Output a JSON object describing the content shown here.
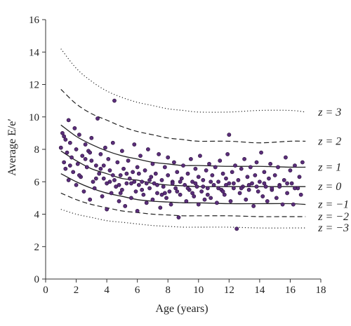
{
  "chart_data": {
    "type": "scatter",
    "title": "",
    "xlabel": "Age (years)",
    "ylabel": "Average E/e′",
    "xlim": [
      0,
      18
    ],
    "ylim": [
      0,
      16
    ],
    "x_ticks": [
      "0",
      "2",
      "4",
      "6",
      "8",
      "10",
      "12",
      "14",
      "16",
      "18"
    ],
    "y_ticks": [
      "0",
      "2",
      "4",
      "6",
      "8",
      "10",
      "12",
      "14",
      "16"
    ],
    "grid": false,
    "point_color": "#5a2e7a",
    "point_edge": "#2a0f3a",
    "centile_curves": [
      {
        "label": "z = 3",
        "style": "dotted",
        "points": [
          [
            1,
            14.2
          ],
          [
            2,
            13.0
          ],
          [
            3,
            12.2
          ],
          [
            4,
            11.6
          ],
          [
            5,
            11.2
          ],
          [
            6,
            10.9
          ],
          [
            7,
            10.7
          ],
          [
            8,
            10.5
          ],
          [
            9,
            10.4
          ],
          [
            10,
            10.3
          ],
          [
            12,
            10.3
          ],
          [
            14,
            10.4
          ],
          [
            16,
            10.4
          ],
          [
            17,
            10.3
          ]
        ]
      },
      {
        "label": "z = 2",
        "style": "dashed",
        "points": [
          [
            1,
            11.7
          ],
          [
            2,
            10.8
          ],
          [
            3,
            10.2
          ],
          [
            4,
            9.8
          ],
          [
            5,
            9.4
          ],
          [
            6,
            9.1
          ],
          [
            7,
            8.9
          ],
          [
            8,
            8.7
          ],
          [
            9,
            8.6
          ],
          [
            10,
            8.5
          ],
          [
            12,
            8.5
          ],
          [
            14,
            8.4
          ],
          [
            16,
            8.5
          ],
          [
            17,
            8.5
          ]
        ]
      },
      {
        "label": "z = 1",
        "style": "solid",
        "points": [
          [
            1,
            9.5
          ],
          [
            2,
            8.8
          ],
          [
            3,
            8.3
          ],
          [
            4,
            7.9
          ],
          [
            5,
            7.6
          ],
          [
            6,
            7.4
          ],
          [
            7,
            7.2
          ],
          [
            8,
            7.1
          ],
          [
            9,
            7.0
          ],
          [
            10,
            7.0
          ],
          [
            12,
            6.95
          ],
          [
            14,
            6.95
          ],
          [
            16,
            6.9
          ],
          [
            17,
            6.9
          ]
        ]
      },
      {
        "label": "z = 0",
        "style": "solid",
        "points": [
          [
            1,
            7.9
          ],
          [
            2,
            7.3
          ],
          [
            3,
            6.8
          ],
          [
            4,
            6.5
          ],
          [
            5,
            6.2
          ],
          [
            6,
            6.1
          ],
          [
            7,
            5.9
          ],
          [
            8,
            5.8
          ],
          [
            9,
            5.75
          ],
          [
            10,
            5.7
          ],
          [
            12,
            5.7
          ],
          [
            14,
            5.7
          ],
          [
            16,
            5.7
          ],
          [
            17,
            5.7
          ]
        ]
      },
      {
        "label": "z = −1",
        "style": "solid",
        "points": [
          [
            1,
            6.5
          ],
          [
            2,
            6.0
          ],
          [
            3,
            5.6
          ],
          [
            4,
            5.3
          ],
          [
            5,
            5.1
          ],
          [
            6,
            4.9
          ],
          [
            7,
            4.8
          ],
          [
            8,
            4.75
          ],
          [
            9,
            4.7
          ],
          [
            10,
            4.7
          ],
          [
            12,
            4.65
          ],
          [
            14,
            4.65
          ],
          [
            16,
            4.65
          ],
          [
            17,
            4.6
          ]
        ]
      },
      {
        "label": "z = −2",
        "style": "dashed",
        "points": [
          [
            1,
            5.3
          ],
          [
            2,
            4.9
          ],
          [
            3,
            4.6
          ],
          [
            4,
            4.4
          ],
          [
            5,
            4.2
          ],
          [
            6,
            4.1
          ],
          [
            7,
            4.0
          ],
          [
            8,
            3.95
          ],
          [
            9,
            3.9
          ],
          [
            10,
            3.9
          ],
          [
            12,
            3.9
          ],
          [
            14,
            3.85
          ],
          [
            16,
            3.85
          ],
          [
            17,
            3.85
          ]
        ]
      },
      {
        "label": "z = −3",
        "style": "dotted",
        "points": [
          [
            1,
            4.3
          ],
          [
            2,
            4.0
          ],
          [
            3,
            3.8
          ],
          [
            4,
            3.6
          ],
          [
            5,
            3.5
          ],
          [
            6,
            3.4
          ],
          [
            7,
            3.3
          ],
          [
            8,
            3.25
          ],
          [
            9,
            3.2
          ],
          [
            10,
            3.2
          ],
          [
            12,
            3.2
          ],
          [
            14,
            3.15
          ],
          [
            16,
            3.15
          ],
          [
            17,
            3.15
          ]
        ]
      }
    ],
    "points": [
      [
        1.0,
        8.1
      ],
      [
        1.1,
        9.0
      ],
      [
        1.2,
        7.2
      ],
      [
        1.3,
        8.6
      ],
      [
        1.3,
        6.8
      ],
      [
        1.4,
        7.8
      ],
      [
        1.5,
        9.8
      ],
      [
        1.5,
        6.1
      ],
      [
        1.6,
        8.4
      ],
      [
        1.7,
        7.5
      ],
      [
        1.8,
        6.6
      ],
      [
        1.9,
        9.3
      ],
      [
        2.0,
        8.0
      ],
      [
        2.0,
        5.8
      ],
      [
        2.1,
        7.1
      ],
      [
        2.2,
        8.9
      ],
      [
        2.3,
        6.3
      ],
      [
        2.4,
        7.6
      ],
      [
        2.5,
        5.4
      ],
      [
        2.6,
        8.3
      ],
      [
        2.7,
        6.9
      ],
      [
        2.8,
        7.9
      ],
      [
        2.9,
        4.9
      ],
      [
        3.0,
        7.3
      ],
      [
        3.0,
        8.7
      ],
      [
        3.1,
        6.0
      ],
      [
        3.2,
        5.6
      ],
      [
        3.3,
        7.0
      ],
      [
        3.4,
        9.9
      ],
      [
        3.5,
        6.5
      ],
      [
        3.6,
        7.7
      ],
      [
        3.7,
        5.1
      ],
      [
        3.8,
        6.2
      ],
      [
        3.9,
        8.1
      ],
      [
        4.0,
        5.9
      ],
      [
        4.0,
        4.3
      ],
      [
        4.1,
        7.4
      ],
      [
        4.2,
        6.7
      ],
      [
        4.3,
        5.3
      ],
      [
        4.4,
        8.4
      ],
      [
        4.5,
        6.1
      ],
      [
        4.5,
        11.0
      ],
      [
        4.6,
        5.7
      ],
      [
        4.7,
        7.2
      ],
      [
        4.8,
        4.8
      ],
      [
        4.9,
        6.4
      ],
      [
        5.0,
        7.9
      ],
      [
        5.0,
        5.5
      ],
      [
        5.1,
        6.8
      ],
      [
        5.2,
        4.5
      ],
      [
        5.3,
        5.9
      ],
      [
        5.4,
        7.3
      ],
      [
        5.5,
        6.2
      ],
      [
        5.6,
        5.0
      ],
      [
        5.7,
        6.6
      ],
      [
        5.8,
        8.3
      ],
      [
        5.9,
        5.4
      ],
      [
        6.0,
        6.9
      ],
      [
        6.0,
        4.2
      ],
      [
        6.1,
        5.8
      ],
      [
        6.2,
        7.6
      ],
      [
        6.3,
        6.0
      ],
      [
        6.4,
        5.2
      ],
      [
        6.5,
        6.7
      ],
      [
        6.6,
        4.7
      ],
      [
        6.7,
        8.0
      ],
      [
        6.8,
        5.6
      ],
      [
        6.9,
        6.3
      ],
      [
        7.0,
        7.1
      ],
      [
        7.0,
        4.9
      ],
      [
        7.1,
        5.9
      ],
      [
        7.2,
        6.5
      ],
      [
        7.3,
        5.3
      ],
      [
        7.4,
        7.7
      ],
      [
        7.5,
        4.4
      ],
      [
        7.6,
        6.1
      ],
      [
        7.7,
        5.7
      ],
      [
        7.8,
        6.9
      ],
      [
        7.9,
        5.0
      ],
      [
        8.0,
        6.4
      ],
      [
        8.0,
        7.5
      ],
      [
        8.1,
        5.4
      ],
      [
        8.2,
        4.6
      ],
      [
        8.3,
        6.0
      ],
      [
        8.4,
        7.2
      ],
      [
        8.5,
        5.6
      ],
      [
        8.6,
        6.6
      ],
      [
        8.7,
        3.8
      ],
      [
        8.8,
        5.2
      ],
      [
        8.9,
        6.2
      ],
      [
        9.0,
        7.0
      ],
      [
        9.1,
        5.8
      ],
      [
        9.2,
        4.8
      ],
      [
        9.3,
        6.5
      ],
      [
        9.4,
        5.5
      ],
      [
        9.5,
        7.4
      ],
      [
        9.6,
        6.0
      ],
      [
        9.7,
        5.1
      ],
      [
        9.8,
        6.8
      ],
      [
        9.9,
        5.7
      ],
      [
        10.0,
        4.6
      ],
      [
        10.0,
        6.3
      ],
      [
        10.1,
        7.6
      ],
      [
        10.2,
        5.4
      ],
      [
        10.3,
        6.1
      ],
      [
        10.4,
        4.9
      ],
      [
        10.5,
        6.7
      ],
      [
        10.6,
        5.6
      ],
      [
        10.7,
        7.1
      ],
      [
        10.8,
        5.0
      ],
      [
        10.9,
        6.4
      ],
      [
        11.0,
        5.8
      ],
      [
        11.1,
        6.9
      ],
      [
        11.2,
        4.7
      ],
      [
        11.3,
        6.0
      ],
      [
        11.4,
        7.3
      ],
      [
        11.5,
        5.5
      ],
      [
        11.6,
        6.5
      ],
      [
        11.7,
        5.2
      ],
      [
        11.8,
        6.2
      ],
      [
        11.9,
        7.7
      ],
      [
        12.0,
        8.9
      ],
      [
        12.0,
        5.9
      ],
      [
        12.1,
        4.8
      ],
      [
        12.2,
        6.6
      ],
      [
        12.3,
        5.6
      ],
      [
        12.4,
        7.0
      ],
      [
        12.5,
        3.1
      ],
      [
        12.6,
        6.1
      ],
      [
        12.7,
        5.3
      ],
      [
        12.8,
        6.8
      ],
      [
        12.9,
        5.7
      ],
      [
        13.0,
        7.4
      ],
      [
        13.1,
        4.9
      ],
      [
        13.2,
        6.3
      ],
      [
        13.3,
        5.5
      ],
      [
        13.4,
        6.9
      ],
      [
        13.5,
        5.9
      ],
      [
        13.6,
        4.5
      ],
      [
        13.7,
        6.4
      ],
      [
        13.8,
        7.2
      ],
      [
        13.9,
        5.4
      ],
      [
        14.0,
        6.0
      ],
      [
        14.1,
        7.8
      ],
      [
        14.2,
        5.1
      ],
      [
        14.3,
        6.6
      ],
      [
        14.4,
        5.7
      ],
      [
        14.5,
        4.8
      ],
      [
        14.6,
        6.2
      ],
      [
        14.7,
        7.1
      ],
      [
        14.8,
        5.5
      ],
      [
        15.0,
        6.4
      ],
      [
        15.1,
        5.0
      ],
      [
        15.2,
        6.9
      ],
      [
        15.3,
        5.8
      ],
      [
        15.5,
        4.6
      ],
      [
        15.6,
        6.1
      ],
      [
        15.7,
        7.5
      ],
      [
        15.8,
        5.3
      ],
      [
        16.0,
        6.7
      ],
      [
        16.1,
        5.9
      ],
      [
        16.2,
        4.6
      ],
      [
        16.3,
        7.0
      ],
      [
        16.5,
        5.6
      ],
      [
        16.6,
        6.3
      ],
      [
        16.7,
        5.2
      ],
      [
        16.8,
        7.2
      ],
      [
        1.2,
        8.8
      ],
      [
        1.6,
        7.0
      ],
      [
        2.2,
        6.4
      ],
      [
        2.6,
        7.4
      ],
      [
        3.3,
        6.2
      ],
      [
        3.8,
        7.0
      ],
      [
        4.2,
        6.0
      ],
      [
        4.8,
        5.8
      ],
      [
        5.3,
        6.5
      ],
      [
        5.8,
        6.0
      ],
      [
        6.3,
        5.5
      ],
      [
        6.8,
        6.1
      ],
      [
        7.3,
        5.8
      ],
      [
        7.8,
        5.3
      ],
      [
        8.3,
        5.9
      ],
      [
        8.8,
        6.0
      ],
      [
        9.3,
        5.6
      ],
      [
        9.8,
        5.9
      ],
      [
        10.3,
        5.7
      ],
      [
        10.8,
        6.0
      ],
      [
        11.3,
        5.6
      ],
      [
        11.8,
        5.8
      ],
      [
        12.3,
        5.9
      ],
      [
        12.8,
        5.6
      ],
      [
        13.3,
        5.8
      ],
      [
        13.8,
        5.7
      ],
      [
        14.3,
        5.9
      ],
      [
        14.8,
        5.6
      ],
      [
        15.3,
        5.7
      ],
      [
        15.8,
        5.9
      ],
      [
        16.3,
        5.6
      ],
      [
        2.9,
        7.8
      ],
      [
        3.6,
        6.8
      ],
      [
        4.4,
        6.4
      ],
      [
        4.9,
        5.3
      ],
      [
        5.6,
        5.9
      ],
      [
        6.1,
        6.5
      ],
      [
        6.6,
        5.9
      ],
      [
        7.6,
        5.2
      ],
      [
        8.6,
        5.4
      ],
      [
        9.6,
        5.3
      ],
      [
        10.6,
        5.2
      ],
      [
        11.6,
        5.4
      ]
    ]
  }
}
